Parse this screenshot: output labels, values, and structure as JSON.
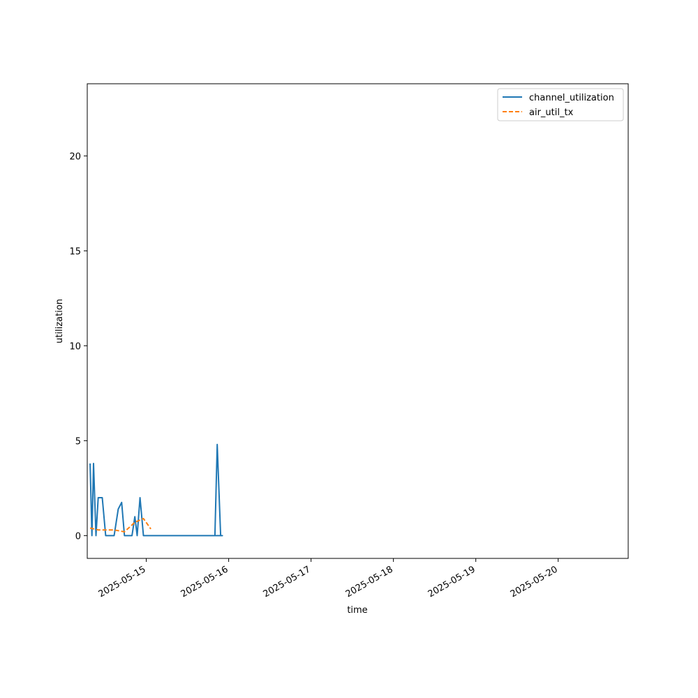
{
  "chart_data": {
    "type": "line",
    "title": "",
    "xlabel": "time",
    "ylabel": "utilization",
    "xlim": [
      "2025-05-14T06:48",
      "2025-05-20T20:24"
    ],
    "ylim": [
      -1.2,
      23.8
    ],
    "x_ticks": [
      "2025-05-15",
      "2025-05-16",
      "2025-05-17",
      "2025-05-18",
      "2025-05-19",
      "2025-05-20"
    ],
    "y_ticks": [
      0,
      5,
      10,
      15,
      20
    ],
    "grid": false,
    "legend": "top-right",
    "series": [
      {
        "name": "channel_utilization",
        "color": "#1f77b4",
        "style": "solid",
        "points": [
          [
            "2025-05-14T07:38",
            3.8
          ],
          [
            "2025-05-14T08:10",
            0
          ],
          [
            "2025-05-14T08:38",
            3.8
          ],
          [
            "2025-05-14T09:20",
            0
          ],
          [
            "2025-05-14T10:00",
            2.0
          ],
          [
            "2025-05-14T11:10",
            2.0
          ],
          [
            "2025-05-14T12:10",
            0
          ],
          [
            "2025-05-14T14:38",
            0
          ],
          [
            "2025-05-14T15:50",
            1.4
          ],
          [
            "2025-05-14T16:50",
            1.75
          ],
          [
            "2025-05-14T17:38",
            0
          ],
          [
            "2025-05-14T19:50",
            0
          ],
          [
            "2025-05-14T20:40",
            1.0
          ],
          [
            "2025-05-14T21:20",
            0
          ],
          [
            "2025-05-14T22:10",
            2.0
          ],
          [
            "2025-05-14T23:10",
            0
          ],
          [
            "2025-05-15T12:10",
            0
          ],
          [
            "2025-05-15T22:10",
            0
          ],
          [
            "2025-05-15T20:00",
            0
          ],
          [
            "2025-05-15T20:40",
            4.8
          ],
          [
            "2025-05-15T21:40",
            0
          ],
          [
            "2025-05-15T20:40",
            4.8
          ]
        ]
      },
      {
        "name": "air_util_tx",
        "color": "#ff7f0e",
        "style": "dashed",
        "points": [
          [
            "2025-05-14T07:38",
            0.4
          ],
          [
            "2025-05-14T10:00",
            0.3
          ],
          [
            "2025-05-14T14:38",
            0.3
          ],
          [
            "2025-05-14T17:38",
            0.2
          ],
          [
            "2025-05-14T20:40",
            0.7
          ],
          [
            "2025-05-14T23:10",
            0.9
          ],
          [
            "2025-05-15T01:20",
            0.35
          ]
        ]
      }
    ]
  }
}
